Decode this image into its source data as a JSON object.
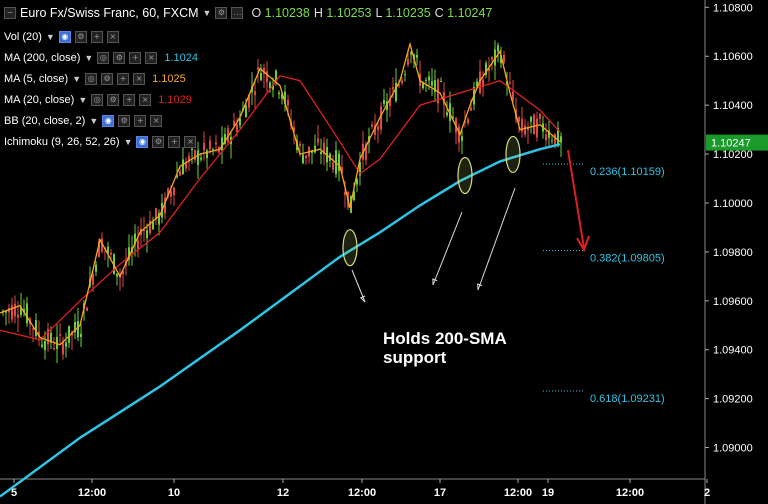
{
  "header": {
    "symbol": "Euro Fx/Swiss Franc, 60, FXCM",
    "ohlc": [
      {
        "k": "O",
        "v": "1.10238"
      },
      {
        "k": "H",
        "v": "1.10253"
      },
      {
        "k": "L",
        "v": "1.10235"
      },
      {
        "k": "C",
        "v": "1.10247"
      }
    ]
  },
  "indicators": [
    {
      "label": "Vol (20)",
      "value": "",
      "color": "#ffffff",
      "eye": true
    },
    {
      "label": "MA (200, close)",
      "value": "1.1024",
      "color": "#2ec4e6",
      "eye": false
    },
    {
      "label": "MA (5, close)",
      "value": "1.1025",
      "color": "#f5a623",
      "eye": false
    },
    {
      "label": "MA (20, close)",
      "value": "1.1029",
      "color": "#e02020",
      "eye": false
    },
    {
      "label": "BB (20, close, 2)",
      "value": "",
      "color": "#ffffff",
      "eye": true
    },
    {
      "label": "Ichimoku (9, 26, 52, 26)",
      "value": "",
      "color": "#ffffff",
      "eye": true
    }
  ],
  "annotation": {
    "line1": "Holds 200-SMA",
    "line2": "support"
  },
  "chart_data": {
    "type": "line",
    "series": [
      {
        "name": "MA (200, close)",
        "color": "#2ec4e6",
        "x": [
          0,
          80,
          160,
          240,
          300,
          340,
          380,
          420,
          460,
          500,
          540,
          560
        ],
        "values": [
          1.088,
          1.0904,
          1.0925,
          1.0948,
          1.0966,
          1.0978,
          1.0988,
          1.0999,
          1.1009,
          1.1017,
          1.1022,
          1.1024
        ]
      },
      {
        "name": "MA (20, close)",
        "color": "#e02020",
        "x": [
          0,
          40,
          80,
          120,
          160,
          200,
          240,
          280,
          300,
          340,
          360,
          380,
          420,
          460,
          500,
          540,
          560
        ],
        "values": [
          1.0948,
          1.0944,
          1.096,
          1.0975,
          1.0988,
          1.101,
          1.103,
          1.1052,
          1.105,
          1.1025,
          1.1012,
          1.1018,
          1.104,
          1.1045,
          1.105,
          1.1038,
          1.1029
        ]
      },
      {
        "name": "MA (5, close)",
        "color": "#f5a623",
        "x": [
          0,
          20,
          40,
          60,
          80,
          100,
          120,
          140,
          160,
          180,
          200,
          220,
          240,
          260,
          280,
          300,
          320,
          340,
          350,
          360,
          380,
          400,
          410,
          420,
          440,
          460,
          470,
          480,
          500,
          510,
          520,
          540,
          560
        ],
        "values": [
          1.0955,
          1.0958,
          1.0945,
          1.0942,
          1.095,
          1.0985,
          1.097,
          1.0988,
          1.0995,
          1.1015,
          1.102,
          1.1022,
          1.1035,
          1.1055,
          1.1048,
          1.102,
          1.1022,
          1.1015,
          1.0998,
          1.1018,
          1.1035,
          1.105,
          1.1065,
          1.105,
          1.1045,
          1.1028,
          1.104,
          1.105,
          1.1062,
          1.1045,
          1.103,
          1.1032,
          1.1025
        ]
      }
    ],
    "yaxis": {
      "min": 1.089,
      "max": 1.1083,
      "ticks": [
        "1.10800",
        "1.10600",
        "1.10400",
        "1.10200",
        "1.10000",
        "1.09800",
        "1.09600",
        "1.09400",
        "1.09200",
        "1.09000"
      ],
      "current_price": "1.10247"
    },
    "xaxis": {
      "ticks": [
        "5",
        "12:00",
        "10",
        "12",
        "12:00",
        "17",
        "12:00",
        "19",
        "12:00",
        "2"
      ]
    },
    "fib_levels": [
      {
        "label": "0.236(1.10159)",
        "value": 1.10159
      },
      {
        "label": "0.382(1.09805)",
        "value": 1.09805
      },
      {
        "label": "0.618(1.09231)",
        "value": 1.09231
      }
    ],
    "support_points_x": [
      350,
      465,
      513
    ]
  }
}
